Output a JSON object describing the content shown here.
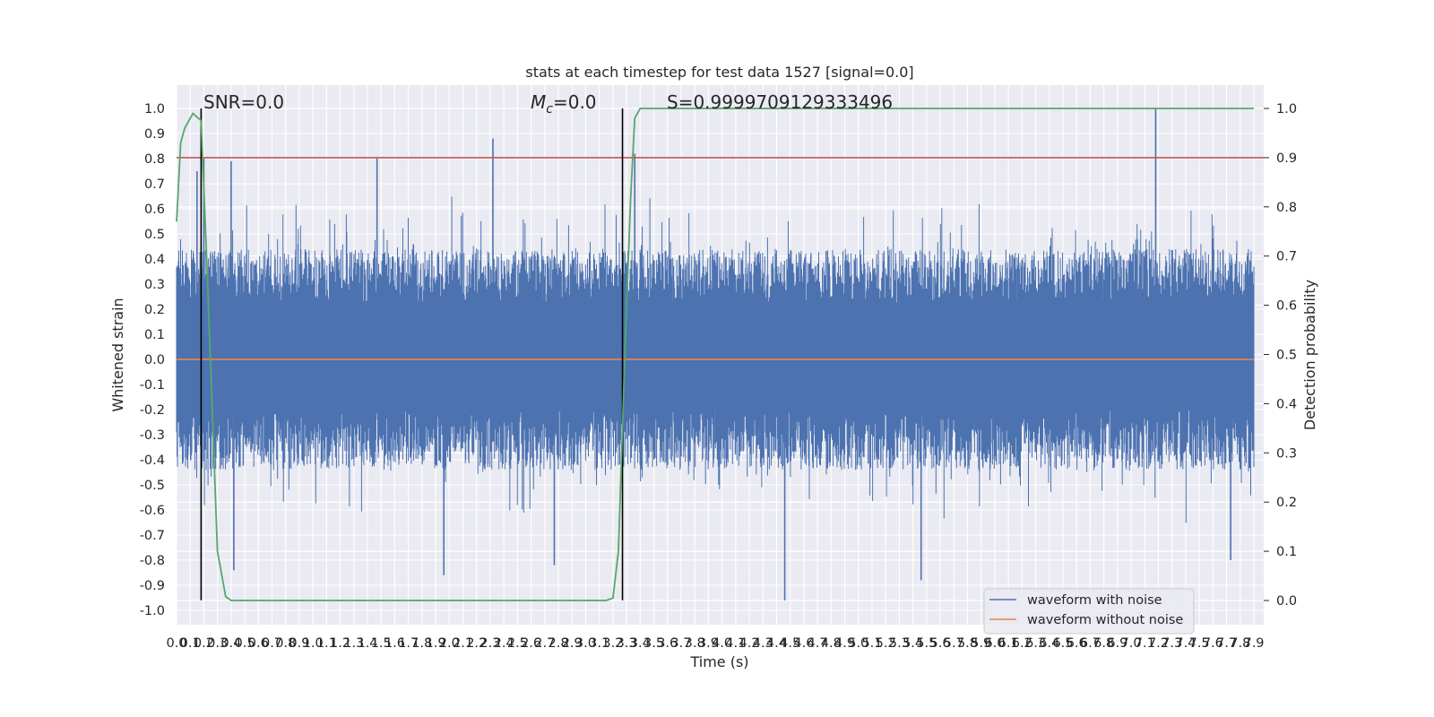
{
  "chart_data": {
    "type": "line",
    "title": "stats at each timestep for test data 1527 [signal=0.0]",
    "xlabel": "Time (s)",
    "ylabel": "Whitened strain",
    "ylabel_right": "Detection probability",
    "xlim": [
      0.0,
      7.9
    ],
    "ylim": [
      -1.0,
      1.0
    ],
    "ylim_right": [
      0.0,
      1.0
    ],
    "x_ticks": [
      "0.0",
      "0.1",
      "0.2",
      "0.3",
      "0.4",
      "0.5",
      "0.6",
      "0.7",
      "0.8",
      "0.9",
      "1.0",
      "1.1",
      "1.2",
      "1.3",
      "1.4",
      "1.5",
      "1.6",
      "1.7",
      "1.8",
      "1.9",
      "2.0",
      "2.1",
      "2.2",
      "2.3",
      "2.4",
      "2.5",
      "2.6",
      "2.7",
      "2.8",
      "2.9",
      "3.0",
      "3.1",
      "3.2",
      "3.3",
      "3.4",
      "3.5",
      "3.6",
      "3.7",
      "3.8",
      "3.9",
      "4.0",
      "4.1",
      "4.2",
      "4.3",
      "4.4",
      "4.5",
      "4.6",
      "4.7",
      "4.8",
      "4.9",
      "5.0",
      "5.1",
      "5.2",
      "5.3",
      "5.4",
      "5.5",
      "5.6",
      "5.7",
      "5.8",
      "5.9",
      "6.0",
      "6.1",
      "6.2",
      "6.3",
      "6.4",
      "6.5",
      "6.6",
      "6.7",
      "6.8",
      "6.9",
      "7.0",
      "7.1",
      "7.2",
      "7.3",
      "7.4",
      "7.5",
      "7.6",
      "7.7",
      "7.8",
      "7.9"
    ],
    "y_ticks": [
      "1.0",
      "0.9",
      "0.8",
      "0.7",
      "0.6",
      "0.5",
      "0.4",
      "0.3",
      "0.2",
      "0.1",
      "0.0",
      "-0.1",
      "-0.2",
      "-0.3",
      "-0.4",
      "-0.5",
      "-0.6",
      "-0.7",
      "-0.8",
      "-0.9",
      "-1.0"
    ],
    "y_ticks_right": [
      "1.0",
      "0.9",
      "0.8",
      "0.7",
      "0.6",
      "0.5",
      "0.4",
      "0.3",
      "0.2",
      "0.1",
      "0.0"
    ],
    "grid": true,
    "legend_position": "lower-right",
    "series": [
      {
        "name": "waveform with noise",
        "axis": "left",
        "color": "#4c72b0",
        "style": "dense noisy waveform; typical range about -0.45 to 0.45",
        "notable_peaks": [
          {
            "x": 0.15,
            "y": 0.75
          },
          {
            "x": 0.2,
            "y": 0.8
          },
          {
            "x": 0.4,
            "y": 0.79
          },
          {
            "x": 1.47,
            "y": 0.8
          },
          {
            "x": 2.32,
            "y": 0.88
          },
          {
            "x": 3.36,
            "y": 0.82
          },
          {
            "x": 7.18,
            "y": 1.0
          }
        ],
        "notable_troughs": [
          {
            "x": 0.42,
            "y": -0.84
          },
          {
            "x": 1.96,
            "y": -0.86
          },
          {
            "x": 2.77,
            "y": -0.82
          },
          {
            "x": 4.46,
            "y": -0.96
          },
          {
            "x": 5.46,
            "y": -0.88
          },
          {
            "x": 7.73,
            "y": -0.8
          }
        ]
      },
      {
        "name": "waveform without noise",
        "axis": "left",
        "color": "#dd8452",
        "x": [
          0.0,
          7.9
        ],
        "y": [
          0.0,
          0.0
        ]
      },
      {
        "axis": "right",
        "color": "#55a868",
        "x": [
          0.0,
          0.03,
          0.06,
          0.12,
          0.18,
          0.22,
          0.26,
          0.3,
          0.36,
          0.4,
          0.6,
          0.8,
          1.0,
          1.2,
          1.5,
          2.0,
          2.5,
          3.0,
          3.15,
          3.2,
          3.24,
          3.27,
          3.3,
          3.33,
          3.36,
          3.4,
          3.5,
          4.0,
          5.0,
          6.0,
          7.0,
          7.9
        ],
        "y": [
          0.77,
          0.93,
          0.96,
          0.99,
          0.975,
          0.7,
          0.4,
          0.1,
          0.008,
          0.0,
          0.0,
          0.0,
          0.0,
          0.0,
          0.0,
          0.0,
          0.0,
          0.0,
          0.0,
          0.005,
          0.1,
          0.35,
          0.6,
          0.82,
          0.98,
          1.0,
          1.0,
          1.0,
          1.0,
          1.0,
          1.0,
          1.0
        ]
      }
    ],
    "reference_lines": [
      {
        "axis": "right",
        "y": 0.9,
        "color": "#c44e52"
      },
      {
        "axis": "left",
        "x": 0.18,
        "color": "#000000",
        "y_from": -0.96,
        "y_to": 1.0
      },
      {
        "axis": "left",
        "x": 3.27,
        "color": "#000000",
        "y_from": -0.96,
        "y_to": 1.0
      }
    ],
    "annotations": {
      "snr": "SNR=0.0",
      "mc_symbol": "M",
      "mc_subscript": "c",
      "mc_value": "=0.0",
      "s": "S=0.9999709129333496"
    }
  }
}
